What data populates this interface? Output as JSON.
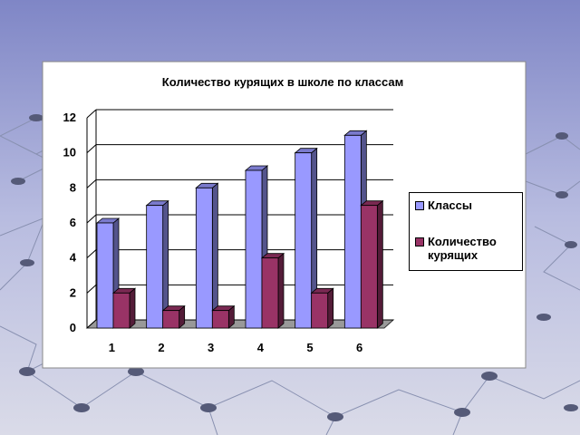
{
  "chart_data": {
    "type": "bar3d",
    "title": "Количество курящих в школе по классам",
    "categories": [
      "1",
      "2",
      "3",
      "4",
      "5",
      "6"
    ],
    "series": [
      {
        "name": "Классы",
        "color": "#9999ff",
        "values": [
          6,
          7,
          8,
          9,
          10,
          11
        ]
      },
      {
        "name": "Количество курящих",
        "color": "#993366",
        "values": [
          2,
          1,
          1,
          4,
          2,
          7
        ]
      }
    ],
    "ylim": [
      0,
      12
    ],
    "yticks": [
      0,
      2,
      4,
      6,
      8,
      10,
      12
    ],
    "grid": true,
    "legend": "right"
  }
}
